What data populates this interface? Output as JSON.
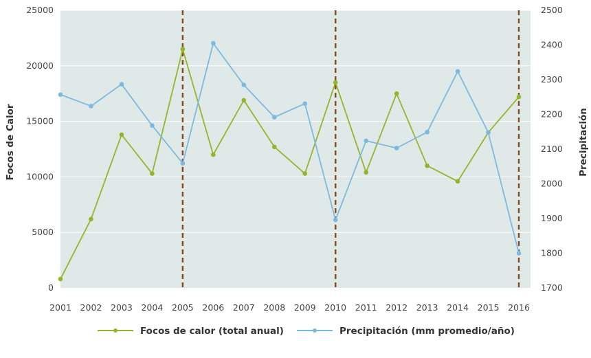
{
  "chart_data": {
    "type": "line",
    "x": [
      2001,
      2002,
      2003,
      2004,
      2005,
      2006,
      2007,
      2008,
      2009,
      2010,
      2011,
      2012,
      2013,
      2014,
      2015,
      2016
    ],
    "x_tick_labels": [
      "2001",
      "2002",
      "2003",
      "2004",
      "2005",
      "2006",
      "2007",
      "2008",
      "2009",
      "2010",
      "2011",
      "2012",
      "2013",
      "2014",
      "2015",
      "2016"
    ],
    "ylabel": "Focos de Calor",
    "y2label": "Precipitación",
    "ylim": [
      0,
      25000
    ],
    "y_ticks": [
      0,
      5000,
      10000,
      15000,
      20000,
      25000
    ],
    "y2lim": [
      1700,
      2500
    ],
    "y2_ticks": [
      1700,
      1800,
      1900,
      2000,
      2100,
      2200,
      2300,
      2400,
      2500
    ],
    "grid": true,
    "legend_position": "bottom",
    "reference_lines_x": [
      2005,
      2010,
      2016
    ],
    "series": [
      {
        "name": "Focos de calor (total anual)",
        "axis": "left",
        "color": "#94b52a",
        "values": [
          800,
          6200,
          13800,
          10300,
          21500,
          12000,
          16900,
          12700,
          10300,
          18500,
          10400,
          17500,
          11000,
          9600,
          14000,
          17200
        ]
      },
      {
        "name": "Precipitación (mm promedio/año)",
        "axis": "right",
        "color": "#7db9dd",
        "values": [
          2257,
          2224,
          2287,
          2168,
          2059,
          2405,
          2285,
          2192,
          2231,
          1896,
          2124,
          2103,
          2149,
          2324,
          2148,
          1800
        ]
      }
    ],
    "colors": {
      "plot_background": "#dfeae8",
      "gridline": "#ffffff",
      "reference_line": "#8a4a1f"
    }
  }
}
